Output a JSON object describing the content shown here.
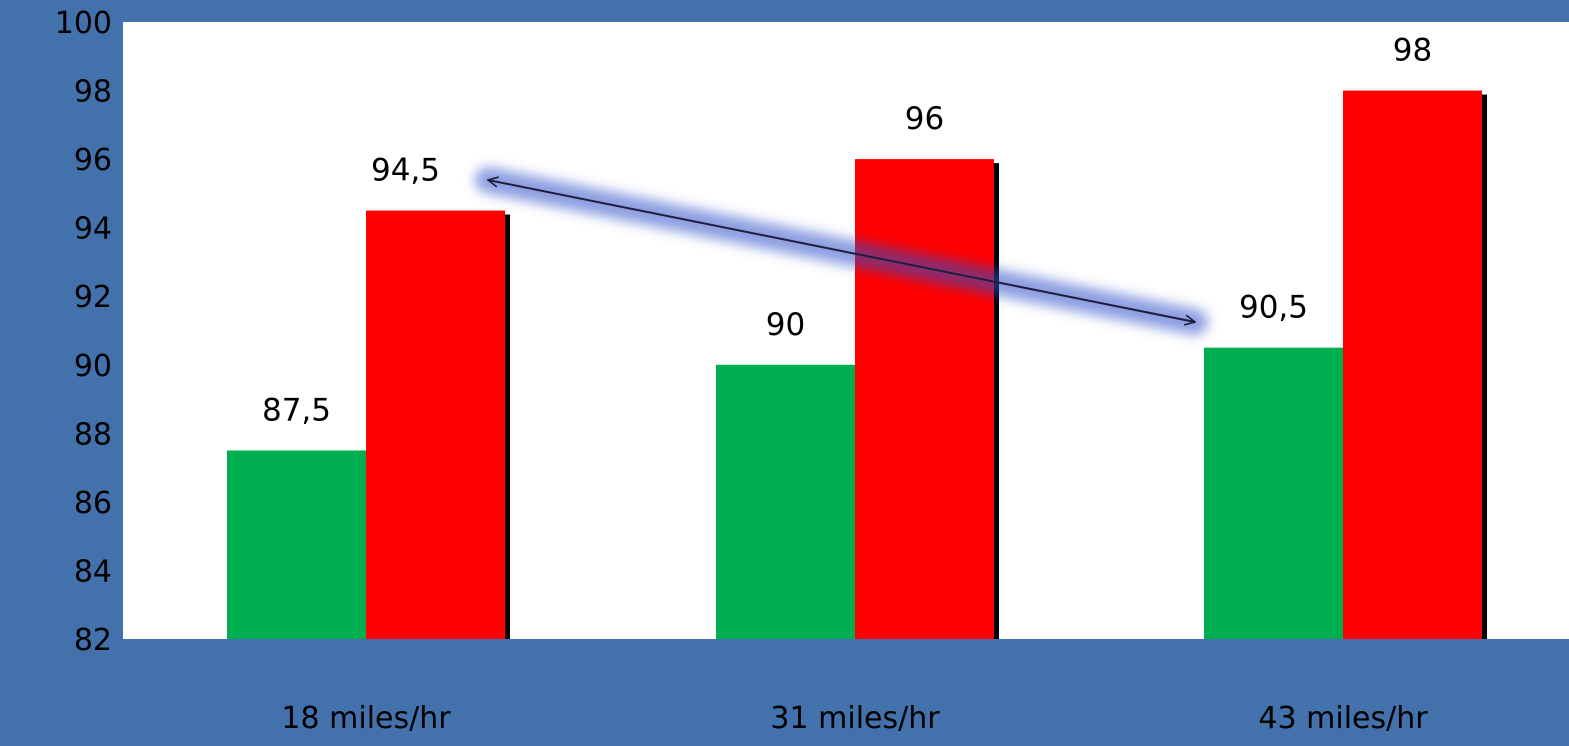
{
  "chart_data": {
    "type": "bar",
    "title": "",
    "xlabel": "",
    "ylabel": "",
    "categories": [
      "18 miles/hr",
      "31 miles/hr",
      "43 miles/hr"
    ],
    "series": [
      {
        "values": [
          87.5,
          90,
          90.5
        ],
        "labels": [
          "87,5",
          "90",
          "90,5"
        ],
        "color": "#00B050"
      },
      {
        "values": [
          94.5,
          96,
          98
        ],
        "labels": [
          "94,5",
          "96",
          "98"
        ],
        "color": "#FF0000"
      }
    ],
    "ylim": [
      82,
      100
    ],
    "yticks": [
      {
        "value": 82,
        "label": "82"
      },
      {
        "value": 84,
        "label": "84"
      },
      {
        "value": 86,
        "label": "86"
      },
      {
        "value": 88,
        "label": "88"
      },
      {
        "value": 90,
        "label": "90"
      },
      {
        "value": 92,
        "label": "92"
      },
      {
        "value": 94,
        "label": "94"
      },
      {
        "value": 96,
        "label": "96"
      },
      {
        "value": 98,
        "label": "98"
      },
      {
        "value": 100,
        "label": "100"
      }
    ],
    "grid": false,
    "legend": "none",
    "annotations": [
      {
        "type": "double-arrow",
        "from": "18 miles/hr red bar label",
        "to": "43 miles/hr green bar label",
        "color": "#1E1E3C",
        "glow_color": "#2E4FC8"
      }
    ]
  },
  "colors": {
    "background": "#4271AC",
    "plot_area": "#FFFFFF",
    "text": "#000000",
    "bar_shadow": "#000000"
  }
}
